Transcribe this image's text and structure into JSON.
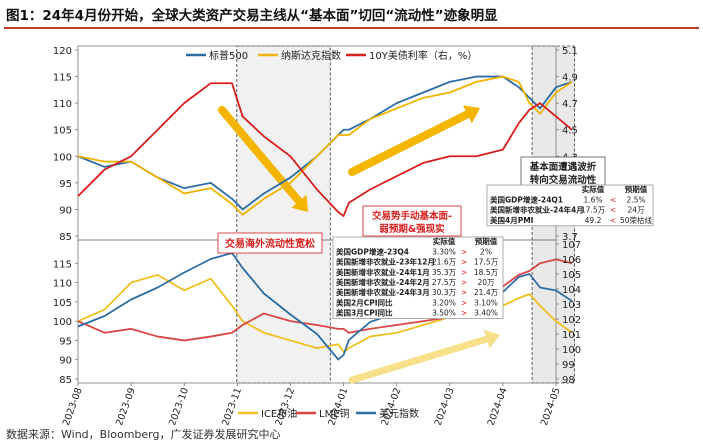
{
  "title": "图1：24年4月份开始，全球大类资产交易主线从“基本面”切回“流动性”迹象明显",
  "source": "数据来源：Wind，Bloomberg，广发证券发展研究中心",
  "colors": {
    "sp500": "#2e6da4",
    "nasdaq": "#f0b400",
    "ust10y": "#d81e1e",
    "ice_oil": "#f0c020",
    "lme_copper": "#d94646",
    "usd_index": "#2e6da4",
    "annot_red": "#d81e1e",
    "arrow_orange": "#f3b500",
    "arrow_yellow": "#f6e08a"
  },
  "x_dates": [
    "2023-08",
    "2023-09",
    "2023-10",
    "2023-11",
    "2023-12",
    "2024-01",
    "2024-02",
    "2024-03",
    "2024-04",
    "2024-05"
  ],
  "shaded_periods": [
    {
      "name": "liquidity-easing",
      "start": 2.99,
      "end": 4.75
    },
    {
      "name": "back-to-liquidity",
      "start": 8.55,
      "end": 9.35
    }
  ],
  "annotations": {
    "liquidity_easing": "交易海外流动性宽松",
    "fundamentals_line1": "交易势手动基本面-",
    "fundamentals_line2": "弱预期&强现实",
    "back_to_liquidity_line1": "基本面遭遇波折",
    "back_to_liquidity_line2": "转向交易流动性"
  },
  "macro_table_1": {
    "headers": [
      "",
      "实际值",
      "",
      "预期值"
    ],
    "rows": [
      [
        "美国GDP增速-23Q4",
        "3.30%",
        ">",
        "2%"
      ],
      [
        "美国新增非农就业-23年12月",
        "21.6万",
        ">",
        "17.5万"
      ],
      [
        "美国新增非农就业-24年1月",
        "35.3万",
        ">",
        "18.5万"
      ],
      [
        "美国新增非农就业-24年2月",
        "27.5万",
        ">",
        "20万"
      ],
      [
        "美国新增非农就业-24年3月",
        "30.3万",
        ">",
        "21.4万"
      ],
      [
        "美国2月CPI同比",
        "3.20%",
        ">",
        "3.10%"
      ],
      [
        "美国3月CPI同比",
        "3.50%",
        ">",
        "3.40%"
      ]
    ]
  },
  "macro_table_2": {
    "headers": [
      "",
      "实际值",
      "",
      "预期值"
    ],
    "rows": [
      [
        "美国GDP增速-24Q1",
        "1.6%",
        "<",
        "2.5%"
      ],
      [
        "美国新增非农就业-24年4月",
        "17.5万",
        "<",
        "24万"
      ],
      [
        "美国4月PMI",
        "49.2",
        "<",
        "50荣枯线"
      ]
    ]
  },
  "chart_data": [
    {
      "type": "line",
      "panel": "top",
      "title": "",
      "x_labels": [
        "2023-08",
        "2023-09",
        "2023-10",
        "2023-11",
        "2023-12",
        "2024-01",
        "2024-02",
        "2024-03",
        "2024-04",
        "2024-05"
      ],
      "x": [
        0.0,
        0.5,
        1.0,
        1.5,
        2.0,
        2.5,
        2.9,
        3.1,
        3.5,
        4.0,
        4.5,
        4.9,
        5.0,
        5.1,
        5.5,
        6.0,
        6.5,
        7.0,
        7.5,
        8.0,
        8.3,
        8.5,
        8.7,
        9.0,
        9.3
      ],
      "left_axis": {
        "ylim": [
          85,
          120
        ],
        "ticks": [
          85,
          90,
          95,
          100,
          105,
          110,
          115,
          120
        ]
      },
      "right_axis": {
        "ylim": [
          3.7,
          5.1
        ],
        "ticks": [
          3.7,
          3.9,
          4.1,
          4.3,
          4.5,
          4.7,
          4.9,
          5.1
        ]
      },
      "legend": [
        "标普500",
        "纳斯达克指数",
        "10Y美债利率（右，%）"
      ],
      "series": [
        {
          "name": "标普500",
          "axis": "left",
          "values": [
            100,
            98,
            99,
            96,
            94,
            95,
            92,
            90,
            93,
            96,
            100,
            104,
            105,
            105,
            107,
            110,
            112,
            114,
            115,
            115,
            113,
            111,
            109,
            113,
            114
          ]
        },
        {
          "name": "纳斯达克指数",
          "axis": "left",
          "values": [
            100,
            99,
            99,
            96,
            93,
            94,
            91,
            89,
            92,
            95,
            100,
            104,
            104,
            104,
            107,
            109,
            111,
            112,
            114,
            115,
            114,
            110,
            108,
            112,
            114
          ]
        },
        {
          "name": "10Y美债利率（右，%）",
          "axis": "right",
          "values": [
            4.0,
            4.2,
            4.3,
            4.5,
            4.7,
            4.85,
            4.85,
            4.6,
            4.45,
            4.3,
            4.05,
            3.88,
            3.85,
            3.95,
            4.05,
            4.15,
            4.25,
            4.3,
            4.3,
            4.35,
            4.55,
            4.65,
            4.7,
            4.6,
            4.5
          ]
        }
      ]
    },
    {
      "type": "line",
      "panel": "bottom",
      "title": "",
      "x_labels": [
        "2023-08",
        "2023-09",
        "2023-10",
        "2023-11",
        "2023-12",
        "2024-01",
        "2024-02",
        "2024-03",
        "2024-04",
        "2024-05"
      ],
      "x": [
        0.0,
        0.5,
        1.0,
        1.5,
        2.0,
        2.5,
        2.9,
        3.1,
        3.5,
        4.0,
        4.5,
        4.9,
        5.0,
        5.1,
        5.5,
        6.0,
        6.5,
        7.0,
        7.5,
        8.0,
        8.3,
        8.5,
        8.7,
        9.0,
        9.3
      ],
      "left_axis": {
        "ylim": [
          85,
          120
        ],
        "ticks": [
          85,
          90,
          95,
          100,
          105,
          110,
          115,
          120
        ]
      },
      "right_axis": {
        "ylim": [
          98,
          107
        ],
        "ticks": [
          98,
          99,
          100,
          101,
          102,
          103,
          104,
          105,
          106,
          107
        ]
      },
      "legend": [
        "ICE布油",
        "LME铜",
        "美元指数"
      ],
      "series": [
        {
          "name": "ICE布油",
          "axis": "left",
          "values": [
            100,
            103,
            110,
            112,
            108,
            111,
            104,
            100,
            97,
            95,
            93,
            94,
            92,
            93,
            96,
            97,
            99,
            101,
            103,
            104,
            106,
            107,
            104,
            100,
            97
          ]
        },
        {
          "name": "LME铜",
          "axis": "left",
          "values": [
            100,
            97,
            98,
            96,
            95,
            96,
            97,
            99,
            102,
            100,
            99,
            98,
            98,
            97,
            98,
            99,
            100,
            101,
            104,
            109,
            112,
            113,
            115,
            116,
            115
          ]
        },
        {
          "name": "美元指数",
          "axis": "right",
          "values": [
            101.5,
            102.2,
            103.3,
            104.1,
            105.1,
            106.0,
            106.4,
            105.4,
            103.7,
            102.3,
            101.0,
            99.3,
            99.6,
            100.6,
            101.8,
            102.4,
            102.7,
            102.1,
            103.3,
            103.8,
            104.8,
            105.0,
            104.1,
            103.9,
            103.2
          ]
        }
      ]
    }
  ]
}
